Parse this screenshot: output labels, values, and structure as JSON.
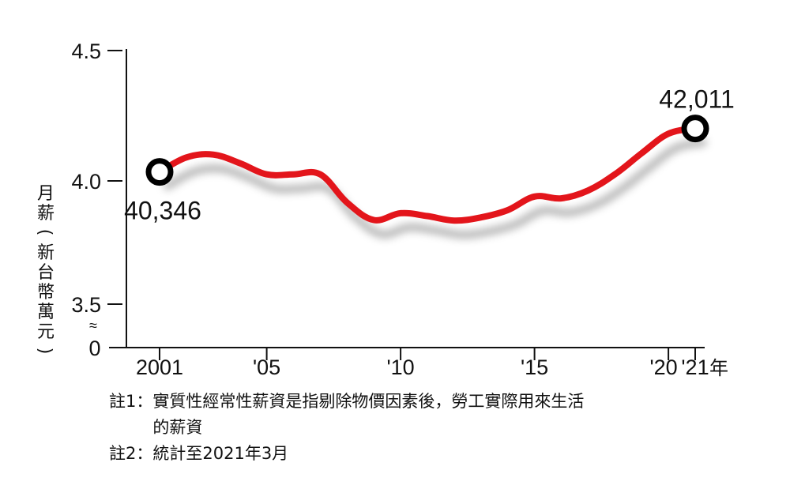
{
  "chart_data": {
    "type": "line",
    "ylabel": "月薪（新台幣萬元）",
    "x_unit": "年",
    "y_ticks": [
      "4.5",
      "4.0",
      "3.5",
      "0"
    ],
    "y_axis_break_symbol": "≈",
    "x_ticks": [
      {
        "value": 2001,
        "label": "2001"
      },
      {
        "value": 2005,
        "label": "'05"
      },
      {
        "value": 2010,
        "label": "'10"
      },
      {
        "value": 2015,
        "label": "'15"
      },
      {
        "value": 2020,
        "label": "'20"
      },
      {
        "value": 2021,
        "label": "'21"
      }
    ],
    "series": [
      {
        "color": "#e3151b",
        "x": [
          2001,
          2002,
          2003,
          2004,
          2005,
          2006,
          2007,
          2008,
          2009,
          2010,
          2011,
          2012,
          2013,
          2014,
          2015,
          2016,
          2017,
          2018,
          2019,
          2020,
          2021
        ],
        "y": [
          4.0346,
          4.09,
          4.101,
          4.068,
          4.025,
          4.025,
          4.025,
          3.917,
          3.85,
          3.876,
          3.865,
          3.848,
          3.86,
          3.888,
          3.94,
          3.933,
          3.963,
          4.025,
          4.106,
          4.181,
          4.2011
        ]
      }
    ],
    "annotations": [
      {
        "x": 2001,
        "y": 4.0346,
        "text": "40,346"
      },
      {
        "x": 2021,
        "y": 4.2011,
        "text": "42,011"
      }
    ]
  },
  "notes": [
    {
      "key": "註1：",
      "lines": [
        "實質性經常性薪資是指剔除物價因素後，勞工實際用來生活",
        "的薪資"
      ]
    },
    {
      "key": "註2：",
      "lines": [
        "統計至2021年3月"
      ]
    }
  ]
}
